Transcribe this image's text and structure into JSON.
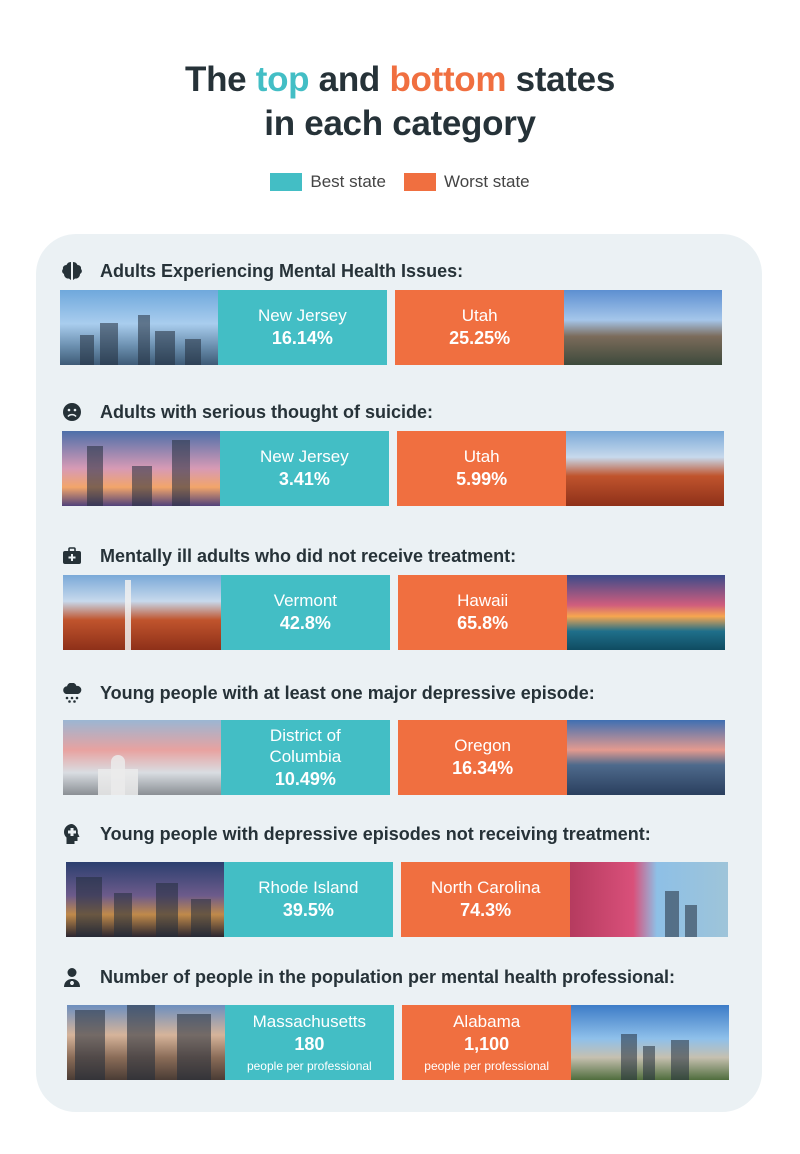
{
  "title": {
    "part1": "The ",
    "best_word": "top",
    "part2": " and ",
    "worst_word": "bottom",
    "part3": " states",
    "line2": "in each category"
  },
  "legend": {
    "best": "Best state",
    "worst": "Worst state"
  },
  "colors": {
    "best": "#43bec5",
    "worst": "#f06f40",
    "panel": "#ebf1f4",
    "text": "#263238"
  },
  "categories": [
    {
      "icon": "brain-icon",
      "heading": "Adults Experiencing Mental Health Issues:",
      "best": {
        "state": "New Jersey",
        "value": "16.14%"
      },
      "worst": {
        "state": "Utah",
        "value": "25.25%"
      }
    },
    {
      "icon": "sad-face-icon",
      "heading": "Adults with serious thought of suicide:",
      "best": {
        "state": "New Jersey",
        "value": "3.41%"
      },
      "worst": {
        "state": "Utah",
        "value": "5.99%"
      }
    },
    {
      "icon": "medical-kit-icon",
      "heading": "Mentally ill adults who did not receive treatment:",
      "best": {
        "state": "Vermont",
        "value": "42.8%"
      },
      "worst": {
        "state": "Hawaii",
        "value": "65.8%"
      }
    },
    {
      "icon": "rain-cloud-icon",
      "heading": "Young people with at least one major depressive episode:",
      "best": {
        "state": "District of Columbia",
        "value": "10.49%"
      },
      "worst": {
        "state": "Oregon",
        "value": "16.34%"
      }
    },
    {
      "icon": "head-plus-icon",
      "heading": "Young people with depressive episodes not receiving treatment:",
      "best": {
        "state": "Rhode Island",
        "value": "39.5%"
      },
      "worst": {
        "state": "North Carolina",
        "value": "74.3%"
      }
    },
    {
      "icon": "doctor-icon",
      "heading": "Number of people in the population per mental health professional:",
      "best": {
        "state": "Massachusetts",
        "value": "180",
        "sub": "people per professional"
      },
      "worst": {
        "state": "Alabama",
        "value": "1,100",
        "sub": "people per professional"
      }
    }
  ]
}
